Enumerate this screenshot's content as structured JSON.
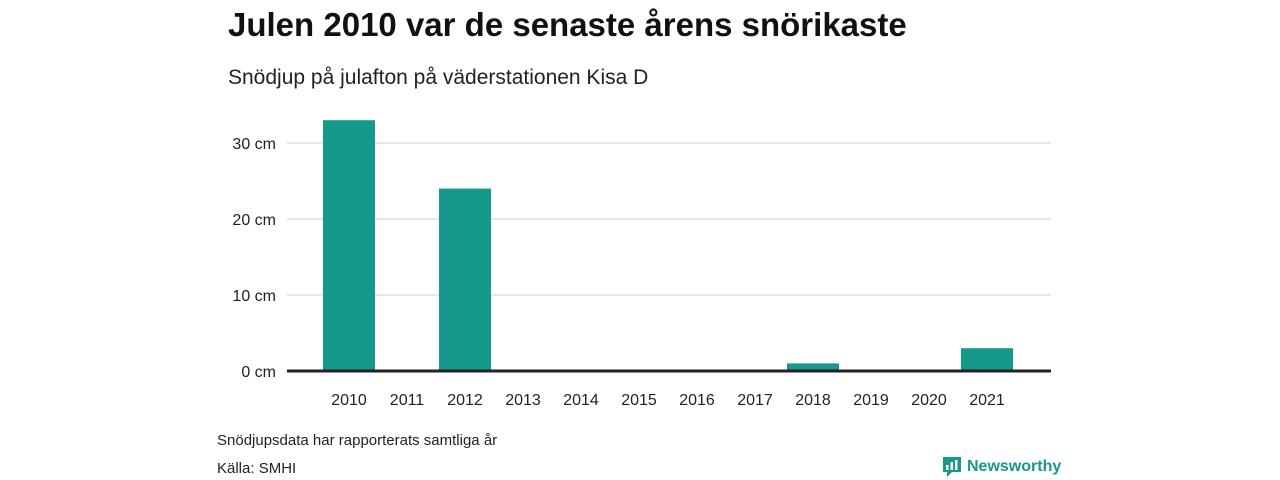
{
  "title": "Julen 2010 var de senaste årens snörikaste",
  "subtitle": "Snödjup på julafton på väderstationen Kisa D",
  "note": "Snödjupsdata har rapporterats samtliga år",
  "source": "Källa: SMHI",
  "brand": "Newsworthy",
  "colors": {
    "bar": "#14998a",
    "grid": "#dddddd",
    "axis": "#222222",
    "brand": "#14998a"
  },
  "chart_data": {
    "type": "bar",
    "categories": [
      "2010",
      "2011",
      "2012",
      "2013",
      "2014",
      "2015",
      "2016",
      "2017",
      "2018",
      "2019",
      "2020",
      "2021"
    ],
    "values": [
      33,
      0,
      24,
      0,
      0,
      0,
      0,
      0,
      1,
      0,
      0,
      3
    ],
    "ylim": [
      0,
      35
    ],
    "yticks": [
      0,
      10,
      20,
      30
    ],
    "ytick_labels": [
      "0 cm",
      "10 cm",
      "20 cm",
      "30 cm"
    ],
    "xlabel": "",
    "ylabel": "",
    "grid": true
  }
}
